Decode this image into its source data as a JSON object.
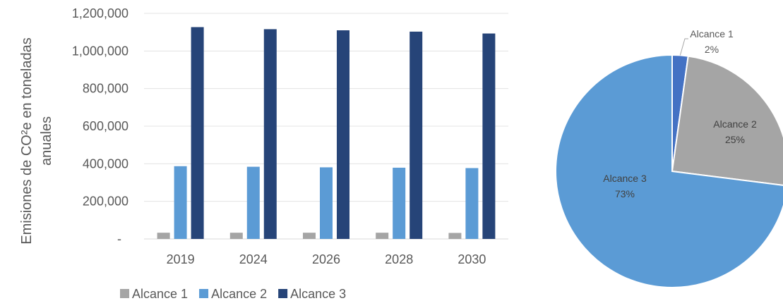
{
  "chart_data": [
    {
      "type": "bar",
      "categories": [
        "2019",
        "2024",
        "2026",
        "2028",
        "2030"
      ],
      "series": [
        {
          "name": "Alcance 1",
          "color": "#a5a5a5",
          "values": [
            33000,
            33000,
            33000,
            33000,
            32000
          ]
        },
        {
          "name": "Alcance 2",
          "color": "#5b9bd5",
          "values": [
            387000,
            384000,
            381000,
            379000,
            377000
          ]
        },
        {
          "name": "Alcance 3",
          "color": "#264478",
          "values": [
            1127000,
            1116000,
            1110000,
            1103000,
            1093000
          ]
        }
      ],
      "ylabel_lines": [
        "Emisiones de CO²e en toneladas",
        "anuales"
      ],
      "ylim": [
        0,
        1200000
      ],
      "ytick_labels": [
        "-",
        "200,000",
        "400,000",
        "600,000",
        "800,000",
        "1,000,000",
        "1,200,000"
      ],
      "grid": true,
      "legend_position": "bottom-left"
    },
    {
      "type": "pie",
      "slices": [
        {
          "name": "Alcance 1",
          "label": "Alcance 1",
          "pct_label": "2%",
          "value": 2.2,
          "color": "#4472c4"
        },
        {
          "name": "Alcance 2",
          "label": "Alcance 2",
          "pct_label": "25%",
          "value": 24.8,
          "color": "#a5a5a5"
        },
        {
          "name": "Alcance 3",
          "label": "Alcance 3",
          "pct_label": "73%",
          "value": 73.0,
          "color": "#5b9bd5"
        }
      ]
    }
  ]
}
